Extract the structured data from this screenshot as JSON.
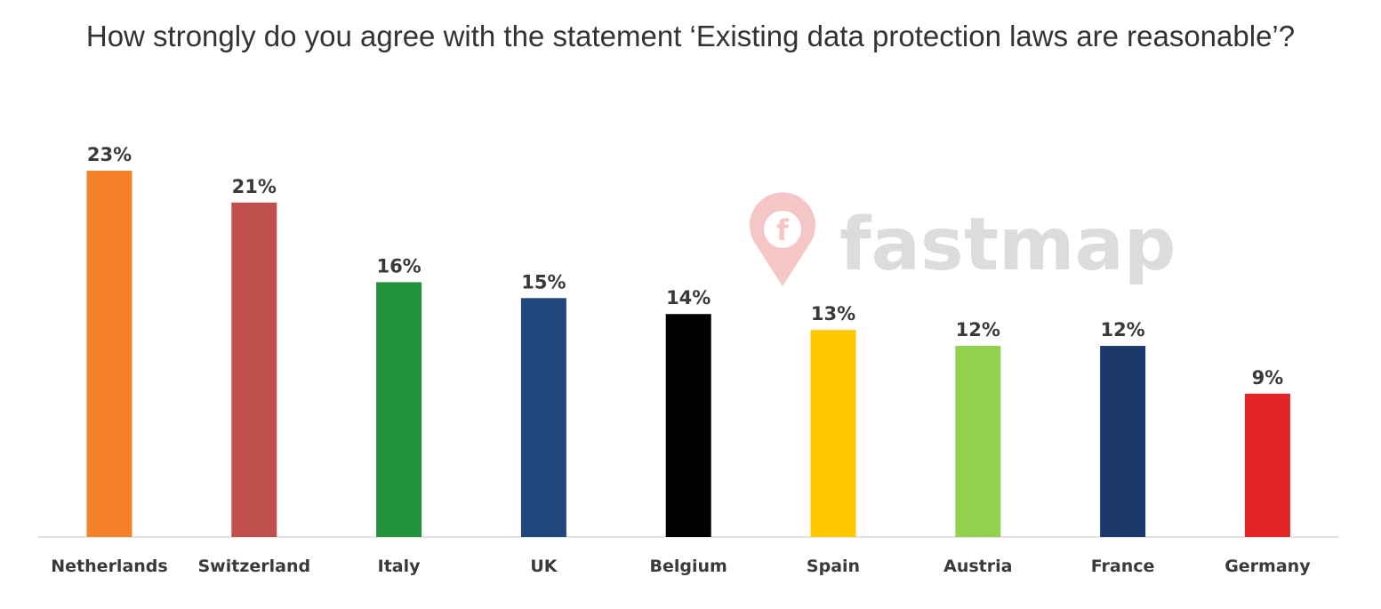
{
  "chart_data": {
    "type": "bar",
    "title": "How strongly do you agree with the statement ‘Existing data protection laws are reasonable’?",
    "categories": [
      "Netherlands",
      "Switzerland",
      "Italy",
      "UK",
      "Belgium",
      "Spain",
      "Austria",
      "France",
      "Germany"
    ],
    "values": [
      23,
      21,
      16,
      15,
      14,
      13,
      12,
      12,
      9
    ],
    "data_labels": [
      "23%",
      "21%",
      "16%",
      "15%",
      "14%",
      "13%",
      "12%",
      "12%",
      "9%"
    ],
    "colors": [
      "#F5812A",
      "#C0504D",
      "#23923D",
      "#1F477C",
      "#000000",
      "#FFC700",
      "#92D050",
      "#1B3A6B",
      "#E32526"
    ],
    "xlabel": "",
    "ylabel": "",
    "ylim": [
      0,
      23
    ],
    "grid": false,
    "legend": "none"
  },
  "watermark": {
    "text": "fastmap",
    "icon": "fastmap-pin-logo",
    "color": "#dcdcdc",
    "icon_color": "#f4c6c6"
  }
}
